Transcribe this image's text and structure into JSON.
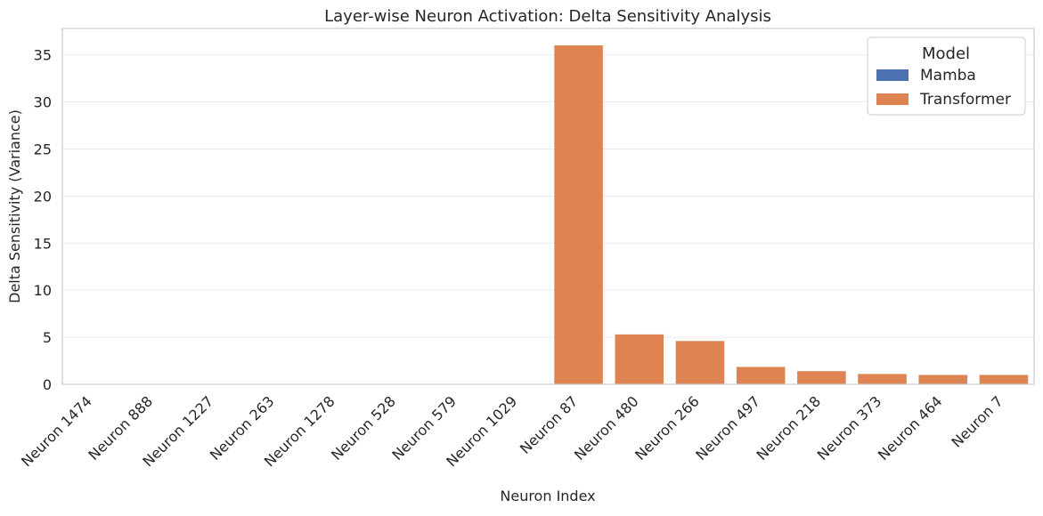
{
  "chart_data": {
    "type": "bar",
    "title": "Layer-wise Neuron Activation: Delta Sensitivity Analysis",
    "xlabel": "Neuron Index",
    "ylabel": "Delta Sensitivity (Variance)",
    "ylim": [
      0,
      37.8
    ],
    "yticks": [
      0,
      5,
      10,
      15,
      20,
      25,
      30,
      35
    ],
    "grid": "horizontal",
    "legend": {
      "title": "Model",
      "placement": "top-right"
    },
    "categories": [
      "Neuron 1474",
      "Neuron 888",
      "Neuron 1227",
      "Neuron 263",
      "Neuron 1278",
      "Neuron 528",
      "Neuron 579",
      "Neuron 1029",
      "Neuron 87",
      "Neuron 480",
      "Neuron 266",
      "Neuron 497",
      "Neuron 218",
      "Neuron 373",
      "Neuron 464",
      "Neuron 7"
    ],
    "series": [
      {
        "name": "Mamba",
        "color": "#4c72b0",
        "values": [
          0.02,
          0.02,
          0.02,
          0.02,
          0.02,
          0.02,
          0.02,
          0.02,
          null,
          null,
          null,
          null,
          null,
          null,
          null,
          null
        ]
      },
      {
        "name": "Transformer",
        "color": "#dd8452",
        "values": [
          null,
          null,
          null,
          null,
          null,
          null,
          null,
          null,
          36.0,
          5.3,
          4.6,
          1.85,
          1.4,
          1.1,
          1.0,
          1.0
        ]
      }
    ]
  }
}
